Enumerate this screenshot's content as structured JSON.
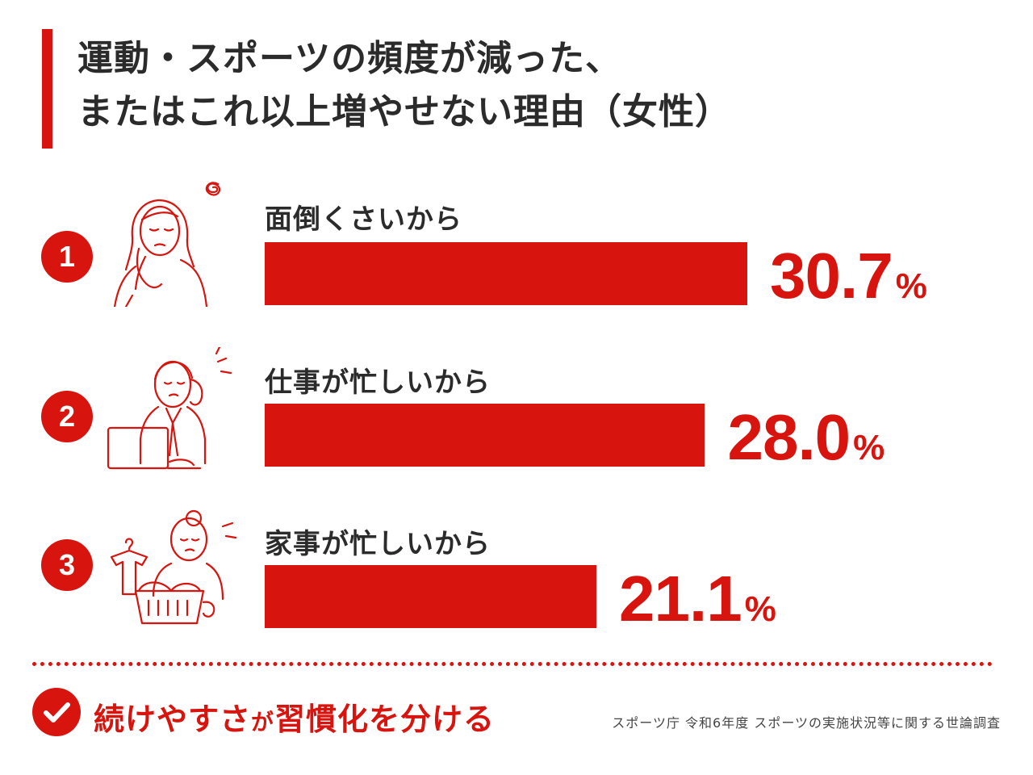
{
  "title": {
    "line1": "運動・スポーツの頻度が減った、",
    "line2": "またはこれ以上増やせない理由（女性）"
  },
  "chart_data": {
    "type": "bar",
    "orientation": "horizontal",
    "categories": [
      "面倒くさいから",
      "仕事が忙しいから",
      "家事が忙しいから"
    ],
    "values": [
      30.7,
      28.0,
      21.1
    ],
    "value_labels": [
      "30.7",
      "28.0",
      "21.1"
    ],
    "ranks": [
      "1",
      "2",
      "3"
    ],
    "unit": "%",
    "xlim": [
      0,
      46.2
    ]
  },
  "footer": {
    "tagline_part1": "続けやすさ",
    "tagline_part2": "が",
    "tagline_part3": "習慣化を分ける",
    "source": "スポーツ庁 令和6年度 スポーツの実施状況等に関する世論調査"
  },
  "colors": {
    "accent": "#d7140d",
    "text": "#2b2b2b"
  },
  "icons": [
    "woman-tired-icon",
    "woman-laptop-icon",
    "woman-laundry-icon",
    "check-icon"
  ]
}
